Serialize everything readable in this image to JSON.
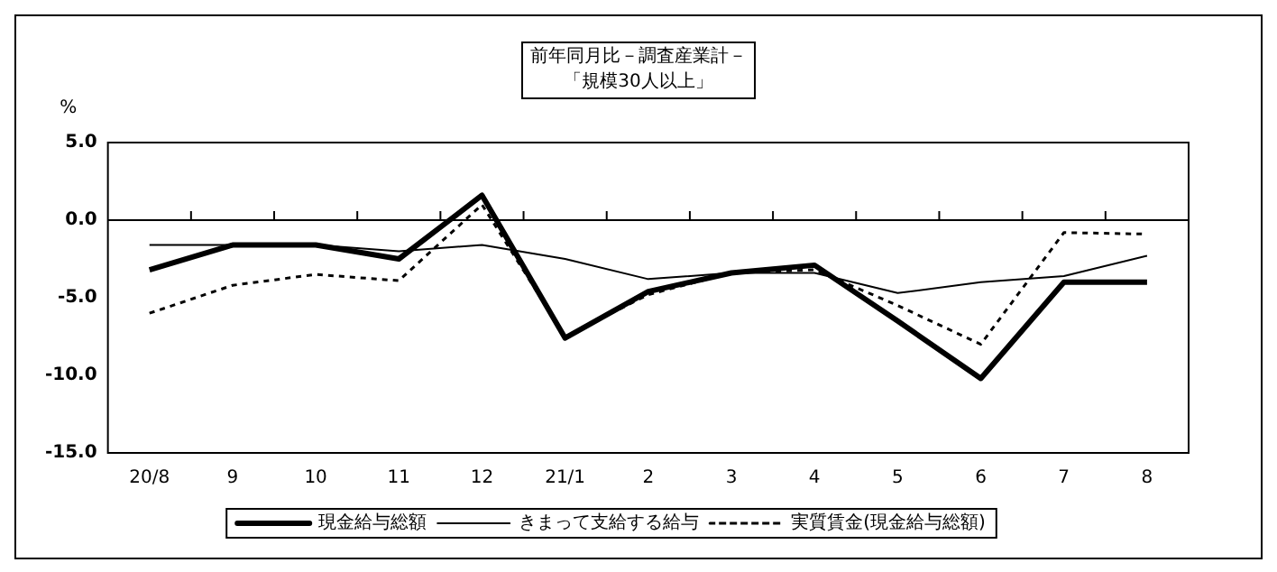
{
  "chart_data": {
    "type": "line",
    "title": [
      "前年同月比－調査産業計－",
      "「規模30人以上」"
    ],
    "ylabel": "%",
    "categories": [
      "20/8",
      "9",
      "10",
      "11",
      "12",
      "21/1",
      "2",
      "3",
      "4",
      "5",
      "6",
      "7",
      "8"
    ],
    "series": [
      {
        "name": "現金給与総額",
        "color": "#000000",
        "line_style": "solid",
        "values": [
          -3.2,
          -1.6,
          -1.6,
          -2.5,
          1.6,
          -7.6,
          -4.6,
          -3.4,
          -2.9,
          -6.5,
          -10.2,
          -4.0,
          -4.0
        ]
      },
      {
        "name": "きまって支給する給与",
        "color": "#000000",
        "line_style": "solid",
        "values": [
          -1.6,
          -1.6,
          -1.6,
          -2.0,
          -1.6,
          -2.5,
          -3.8,
          -3.4,
          -3.4,
          -4.7,
          -4.0,
          -3.6,
          -2.3
        ]
      },
      {
        "name": "実質賃金(現金給与総額)",
        "color": "#000000",
        "line_style": "dotted",
        "values": [
          -6.0,
          -4.2,
          -3.5,
          -3.9,
          1.0,
          -7.5,
          -4.8,
          -3.4,
          -3.2,
          -5.5,
          -8.0,
          -0.8,
          -0.9
        ]
      }
    ],
    "ylim": [
      -15,
      5
    ],
    "yticks": [
      {
        "value": 5,
        "label": "5.0"
      },
      {
        "value": 0,
        "label": "0.0"
      },
      {
        "value": -5,
        "label": "-5.0"
      },
      {
        "value": -10,
        "label": "-10.0"
      },
      {
        "value": -15,
        "label": "-15.0"
      }
    ],
    "ref_lines": [
      {
        "axis": "y",
        "value": 0
      }
    ],
    "grid": false,
    "legend": "bottom",
    "marker": "none"
  }
}
